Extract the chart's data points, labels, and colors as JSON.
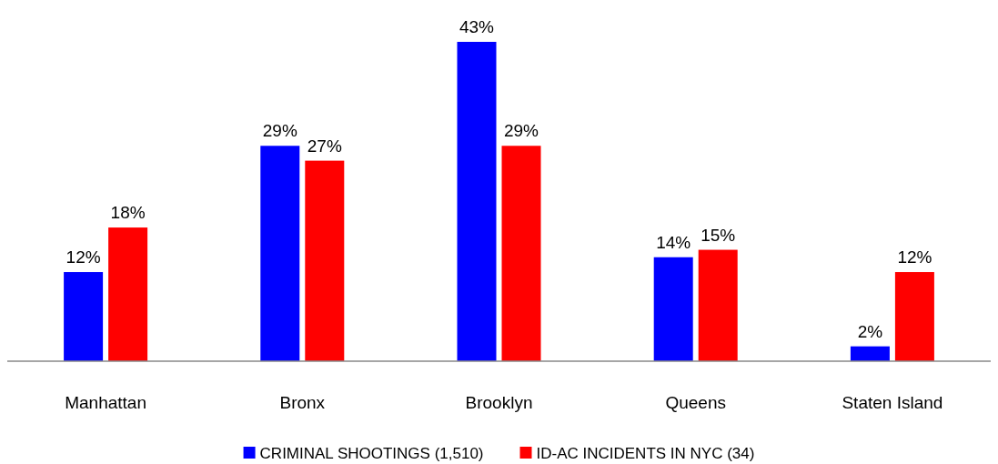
{
  "chart_data": {
    "type": "bar",
    "categories": [
      "Manhattan",
      "Bronx",
      "Brooklyn",
      "Queens",
      "Staten Island"
    ],
    "series": [
      {
        "name": "CRIMINAL SHOOTINGS (1,510)",
        "color": "#0000ff",
        "values": [
          12,
          29,
          43,
          14,
          2
        ],
        "value_labels": [
          "12%",
          "29%",
          "43%",
          "14%",
          "2%"
        ]
      },
      {
        "name": "ID-AC INCIDENTS IN NYC (34)",
        "color": "#ff0000",
        "values": [
          18,
          27,
          29,
          15,
          12
        ],
        "value_labels": [
          "18%",
          "27%",
          "29%",
          "15%",
          "12%"
        ]
      }
    ],
    "legend": "bottom"
  }
}
